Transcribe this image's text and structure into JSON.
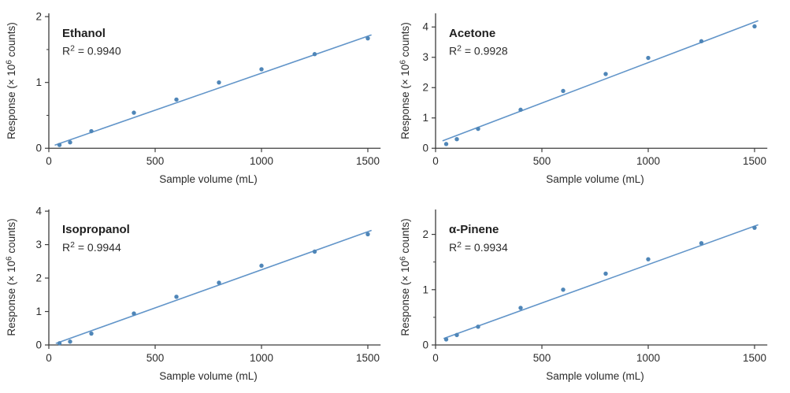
{
  "figure": {
    "background": "#ffffff",
    "line_color": "#6295c9",
    "marker_color": "#4f86b8",
    "axis_color": "#3c3c3c",
    "title_color": "#1f1f1f",
    "text_color": "#2b2b2b",
    "xlabel": "Sample volume (mL)",
    "ylabel": "Response (× 10⁶ counts)",
    "ylabel_parts": [
      "Response (× 10",
      "6",
      " counts)"
    ],
    "r2_parts": [
      "R",
      "2",
      " = "
    ]
  },
  "chart_data": [
    {
      "type": "scatter",
      "title": "Ethanol",
      "r2": "0.9940",
      "xlabel": "Sample volume (mL)",
      "ylabel": "Response (× 10⁶ counts)",
      "x": [
        50,
        100,
        200,
        400,
        600,
        800,
        1000,
        1250,
        1500
      ],
      "y": [
        0.05,
        0.09,
        0.26,
        0.54,
        0.74,
        1.0,
        1.2,
        1.43,
        1.67
      ],
      "trendline": {
        "x1": 30,
        "y1": 0.05,
        "x2": 1515,
        "y2": 1.72
      },
      "xlim": [
        0,
        1560
      ],
      "ylim": [
        0,
        2.05
      ],
      "xticks": [
        0,
        500,
        1000,
        1500
      ],
      "yticks": [
        0,
        1,
        2
      ],
      "yticks_minor": [
        0.5,
        1.5
      ],
      "grid": false,
      "legend": "none"
    },
    {
      "type": "scatter",
      "title": "Acetone",
      "r2": "0.9928",
      "xlabel": "Sample volume (mL)",
      "ylabel": "Response (× 10⁶ counts)",
      "x": [
        50,
        100,
        200,
        400,
        600,
        800,
        1000,
        1250,
        1500
      ],
      "y": [
        0.14,
        0.3,
        0.64,
        1.27,
        1.89,
        2.45,
        2.98,
        3.53,
        4.02
      ],
      "trendline": {
        "x1": 35,
        "y1": 0.25,
        "x2": 1515,
        "y2": 4.2
      },
      "xlim": [
        0,
        1560
      ],
      "ylim": [
        0,
        4.45
      ],
      "xticks": [
        0,
        500,
        1000,
        1500
      ],
      "yticks": [
        0,
        1,
        2,
        3,
        4
      ],
      "yticks_minor": [],
      "grid": false,
      "legend": "none"
    },
    {
      "type": "scatter",
      "title": "Isopropanol",
      "r2": "0.9944",
      "xlabel": "Sample volume (mL)",
      "ylabel": "Response (× 10⁶ counts)",
      "x": [
        50,
        100,
        200,
        400,
        600,
        800,
        1000,
        1250,
        1500
      ],
      "y": [
        0.05,
        0.1,
        0.34,
        0.94,
        1.44,
        1.86,
        2.37,
        2.79,
        3.31
      ],
      "trendline": {
        "x1": 35,
        "y1": 0.05,
        "x2": 1515,
        "y2": 3.42
      },
      "xlim": [
        0,
        1560
      ],
      "ylim": [
        0,
        4.05
      ],
      "xticks": [
        0,
        500,
        1000,
        1500
      ],
      "yticks": [
        0,
        1,
        2,
        3,
        4
      ],
      "yticks_minor": [],
      "grid": false,
      "legend": "none"
    },
    {
      "type": "scatter",
      "title": "α-Pinene",
      "r2": "0.9934",
      "xlabel": "Sample volume (mL)",
      "ylabel": "Response (× 10⁶ counts)",
      "x": [
        50,
        100,
        200,
        400,
        600,
        800,
        1000,
        1250,
        1500
      ],
      "y": [
        0.1,
        0.18,
        0.33,
        0.67,
        1.0,
        1.29,
        1.55,
        1.84,
        2.12
      ],
      "trendline": {
        "x1": 40,
        "y1": 0.12,
        "x2": 1515,
        "y2": 2.17
      },
      "xlim": [
        0,
        1560
      ],
      "ylim": [
        0,
        2.45
      ],
      "xticks": [
        0,
        500,
        1000,
        1500
      ],
      "yticks": [
        0,
        1,
        2
      ],
      "yticks_minor": [
        0.5,
        1.5
      ],
      "grid": false,
      "legend": "none"
    }
  ]
}
